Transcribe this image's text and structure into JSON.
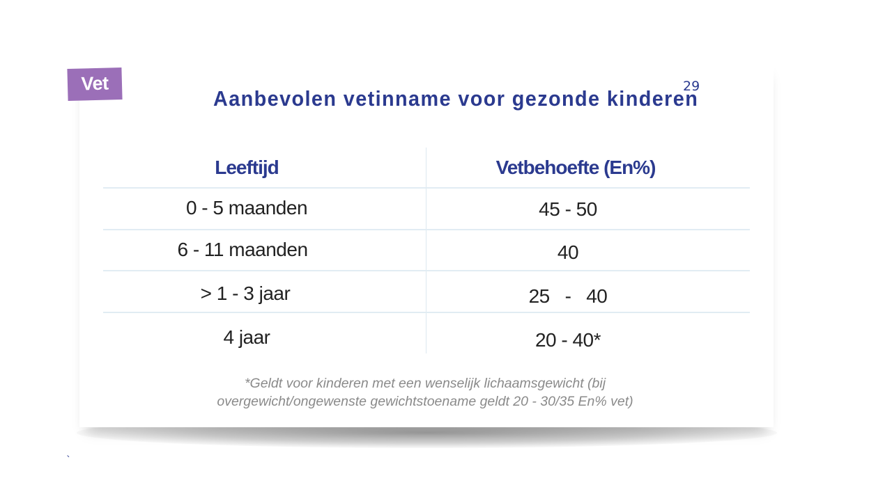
{
  "tag": {
    "label": "Vet"
  },
  "title": {
    "text": "Aanbevolen vetinname voor gezonde kinderen",
    "footnote_ref": "29"
  },
  "table": {
    "headers": [
      "Leeftijd",
      "Vetbehoefte (En%)"
    ],
    "rows": [
      [
        "0 - 5 maanden",
        "45 - 50"
      ],
      [
        "6 - 11 maanden",
        "40"
      ],
      [
        "> 1 - 3 jaar",
        "25   -   40"
      ],
      [
        "4 jaar",
        "20 - 40*"
      ]
    ]
  },
  "footnote": {
    "line1": "*Geldt voor kinderen met een wenselijk lichaamsgewicht (bij",
    "line2": "overgewicht/ongewenste gewichtstoename geldt 20 - 30/35 En% vet)"
  },
  "stray_mark": "`",
  "colors": {
    "accent_blue": "#2b3a8f",
    "tag_purple": "#9b6fb8",
    "footnote_gray": "#8a8a8a"
  }
}
